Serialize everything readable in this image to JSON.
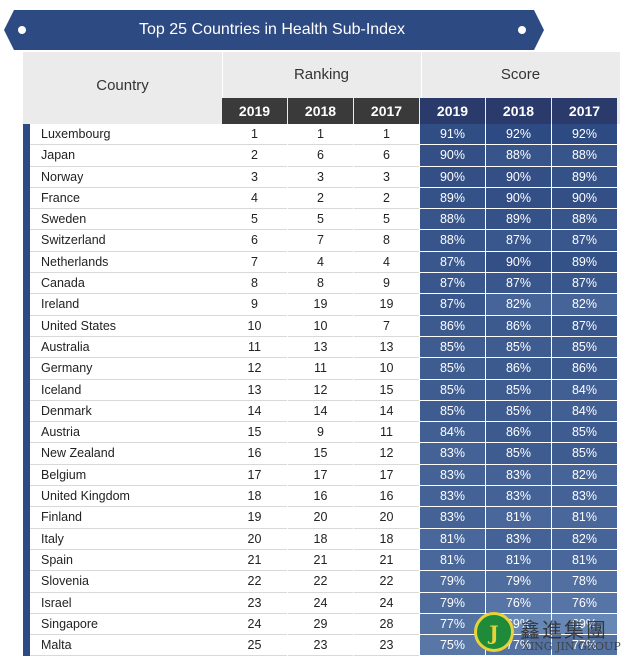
{
  "colors": {
    "banner": "#2e4a82",
    "accent": "#2e4a82",
    "rank_year_header": "#3a3a3a",
    "score_year_header": "#2a3a6a",
    "header_bg": "#ebebeb"
  },
  "chart_data": {
    "type": "table",
    "title": "Top 25 Countries in Health Sub-Index",
    "headers": {
      "country": "Country",
      "ranking": "Ranking",
      "score": "Score",
      "years": [
        "2019",
        "2018",
        "2017"
      ]
    },
    "rows": [
      {
        "country": "Luxembourg",
        "rank": [
          "1",
          "1",
          "1"
        ],
        "score": [
          "91%",
          "92%",
          "92%"
        ]
      },
      {
        "country": "Japan",
        "rank": [
          "2",
          "6",
          "6"
        ],
        "score": [
          "90%",
          "88%",
          "88%"
        ]
      },
      {
        "country": "Norway",
        "rank": [
          "3",
          "3",
          "3"
        ],
        "score": [
          "90%",
          "90%",
          "89%"
        ]
      },
      {
        "country": "France",
        "rank": [
          "4",
          "2",
          "2"
        ],
        "score": [
          "89%",
          "90%",
          "90%"
        ]
      },
      {
        "country": "Sweden",
        "rank": [
          "5",
          "5",
          "5"
        ],
        "score": [
          "88%",
          "89%",
          "88%"
        ]
      },
      {
        "country": "Switzerland",
        "rank": [
          "6",
          "7",
          "8"
        ],
        "score": [
          "88%",
          "87%",
          "87%"
        ]
      },
      {
        "country": "Netherlands",
        "rank": [
          "7",
          "4",
          "4"
        ],
        "score": [
          "87%",
          "90%",
          "89%"
        ]
      },
      {
        "country": "Canada",
        "rank": [
          "8",
          "8",
          "9"
        ],
        "score": [
          "87%",
          "87%",
          "87%"
        ]
      },
      {
        "country": "Ireland",
        "rank": [
          "9",
          "19",
          "19"
        ],
        "score": [
          "87%",
          "82%",
          "82%"
        ]
      },
      {
        "country": "United States",
        "rank": [
          "10",
          "10",
          "7"
        ],
        "score": [
          "86%",
          "86%",
          "87%"
        ]
      },
      {
        "country": "Australia",
        "rank": [
          "11",
          "13",
          "13"
        ],
        "score": [
          "85%",
          "85%",
          "85%"
        ]
      },
      {
        "country": "Germany",
        "rank": [
          "12",
          "11",
          "10"
        ],
        "score": [
          "85%",
          "86%",
          "86%"
        ]
      },
      {
        "country": "Iceland",
        "rank": [
          "13",
          "12",
          "15"
        ],
        "score": [
          "85%",
          "85%",
          "84%"
        ]
      },
      {
        "country": "Denmark",
        "rank": [
          "14",
          "14",
          "14"
        ],
        "score": [
          "85%",
          "85%",
          "84%"
        ]
      },
      {
        "country": "Austria",
        "rank": [
          "15",
          "9",
          "11"
        ],
        "score": [
          "84%",
          "86%",
          "85%"
        ]
      },
      {
        "country": "New Zealand",
        "rank": [
          "16",
          "15",
          "12"
        ],
        "score": [
          "83%",
          "85%",
          "85%"
        ]
      },
      {
        "country": "Belgium",
        "rank": [
          "17",
          "17",
          "17"
        ],
        "score": [
          "83%",
          "83%",
          "82%"
        ]
      },
      {
        "country": "United Kingdom",
        "rank": [
          "18",
          "16",
          "16"
        ],
        "score": [
          "83%",
          "83%",
          "83%"
        ]
      },
      {
        "country": "Finland",
        "rank": [
          "19",
          "20",
          "20"
        ],
        "score": [
          "83%",
          "81%",
          "81%"
        ]
      },
      {
        "country": "Italy",
        "rank": [
          "20",
          "18",
          "18"
        ],
        "score": [
          "81%",
          "83%",
          "82%"
        ]
      },
      {
        "country": "Spain",
        "rank": [
          "21",
          "21",
          "21"
        ],
        "score": [
          "81%",
          "81%",
          "81%"
        ]
      },
      {
        "country": "Slovenia",
        "rank": [
          "22",
          "22",
          "22"
        ],
        "score": [
          "79%",
          "79%",
          "78%"
        ]
      },
      {
        "country": "Israel",
        "rank": [
          "23",
          "24",
          "24"
        ],
        "score": [
          "79%",
          "76%",
          "76%"
        ]
      },
      {
        "country": "Singapore",
        "rank": [
          "24",
          "29",
          "28"
        ],
        "score": [
          "77%",
          "69%",
          "69%"
        ]
      },
      {
        "country": "Malta",
        "rank": [
          "25",
          "23",
          "23"
        ],
        "score": [
          "75%",
          "77%",
          "77%"
        ]
      }
    ]
  },
  "logo": {
    "chinese": "鑫進集團",
    "english": "XING JIN GROUP",
    "mark": "J",
    "mark_icon": "xing-jin-logo-icon"
  }
}
